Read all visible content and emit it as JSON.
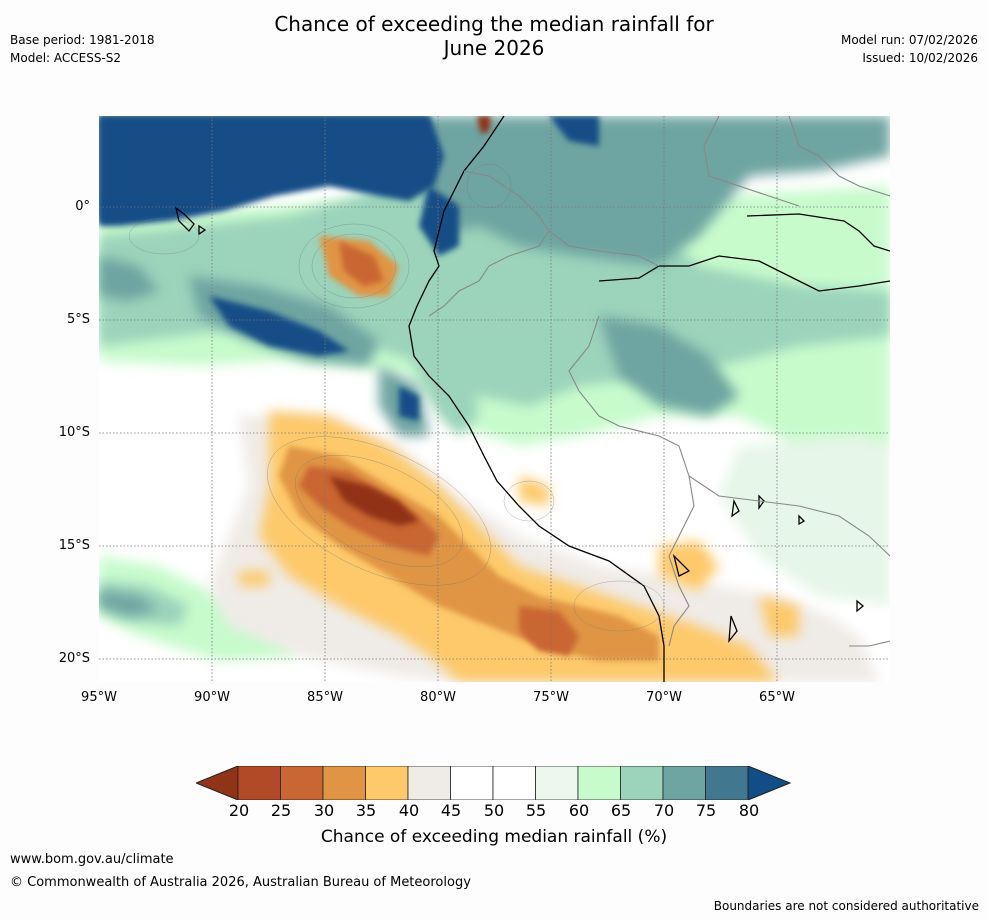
{
  "title_line1": "Chance of exceeding the median rainfall for",
  "title_line2": "June 2026",
  "meta_left": [
    "Base period: 1981-2018",
    "Model: ACCESS-S2"
  ],
  "meta_right": [
    "Model run: 07/02/2026",
    "Issued: 10/02/2026"
  ],
  "map": {
    "lat_labels": [
      "0°",
      "5°S",
      "10°S",
      "15°S",
      "20°S"
    ],
    "lat_values": [
      0,
      -5,
      -10,
      -15,
      -20
    ],
    "lon_labels": [
      "95°W",
      "90°W",
      "85°W",
      "80°W",
      "75°W",
      "70°W",
      "65°W"
    ],
    "lon_values": [
      -95,
      -90,
      -85,
      -80,
      -75,
      -70,
      -65
    ],
    "lon_range": [
      -95,
      -60
    ],
    "lat_range": [
      -21,
      4
    ]
  },
  "colorbar": {
    "ticks": [
      "20",
      "25",
      "30",
      "35",
      "40",
      "45",
      "50",
      "55",
      "60",
      "65",
      "70",
      "75",
      "80"
    ],
    "colors": [
      "#913319",
      "#b24a27",
      "#c96633",
      "#e09545",
      "#fdc96a",
      "#efebe7",
      "#ffffff",
      "#ffffff",
      "#ecf7ee",
      "#c7fbcc",
      "#9bd3bb",
      "#6ea4a1",
      "#41788f",
      "#134d87"
    ],
    "label": "Chance of exceeding median rainfall (%)"
  },
  "footer": {
    "url": "www.bom.gov.au/climate",
    "copyright": "© Commonwealth of Australia 2026, Australian Bureau of Meteorology",
    "disclaimer": "Boundaries are not considered authoritative"
  }
}
